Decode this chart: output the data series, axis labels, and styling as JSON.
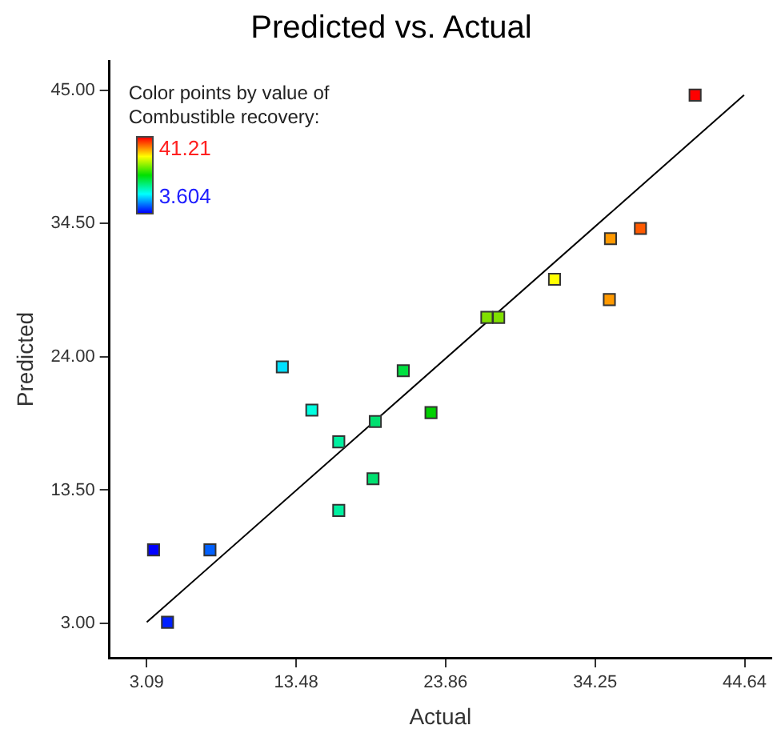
{
  "chart_data": {
    "type": "scatter",
    "title": "Predicted vs. Actual",
    "xlabel": "Actual",
    "ylabel": "Predicted",
    "clabel": "Color points by value of Combustible recovery:",
    "xlim": [
      0.5,
      46.5
    ],
    "xticks": [
      3.09,
      13.48,
      23.86,
      34.25,
      44.64
    ],
    "ylim": [
      0.3,
      47.3
    ],
    "yticks": [
      {
        "value": 3,
        "label": "3.00"
      },
      {
        "value": 13.5,
        "label": "13.50"
      },
      {
        "value": 24,
        "label": "24.00"
      },
      {
        "value": 34.5,
        "label": "34.50"
      },
      {
        "value": 45,
        "label": "45.00"
      }
    ],
    "annotations": [
      "41.21",
      "3.604"
    ],
    "grid": false,
    "series": [
      {
        "marker": "square",
        "x": [
          41.2,
          37.4,
          35.32,
          31.43,
          35.24,
          26.73,
          27.55,
          12.52,
          20.92,
          14.57,
          22.85,
          18.98,
          16.44,
          18.82,
          16.44,
          3.57,
          7.49,
          4.54
        ],
        "values": [
          44.6,
          34.1,
          33.3,
          30.1,
          28.5,
          27.1,
          27.1,
          23.2,
          22.9,
          19.8,
          19.6,
          18.9,
          17.3,
          14.4,
          11.9,
          8.8,
          8.8,
          3.1
        ],
        "colors": [
          "#ff0000",
          "#ff5a00",
          "#ff9900",
          "#ffff00",
          "#ff9900",
          "#80e000",
          "#80e000",
          "#00e0ff",
          "#00e040",
          "#00ffe0",
          "#00d000",
          "#00e070",
          "#00f0a0",
          "#00e070",
          "#00f0a0",
          "#0000ff",
          "#0060ff",
          "#0020ff"
        ]
      },
      {
        "type": "line",
        "x": [
          3.1,
          44.6
        ],
        "values": [
          3.1,
          44.6
        ],
        "color": "#000000"
      }
    ]
  }
}
